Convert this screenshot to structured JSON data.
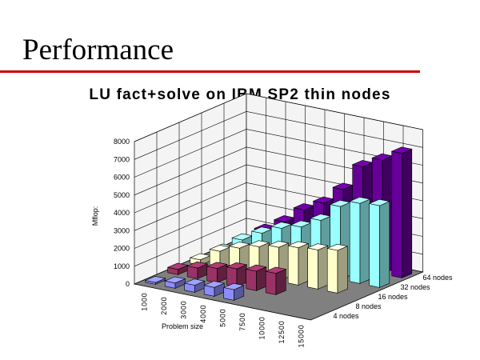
{
  "slide": {
    "title": "Performance",
    "rule_color": "#cc0000"
  },
  "chart_data": {
    "type": "bar",
    "subtype": "3d-column",
    "title": "LU fact+solve on IBM SP2 thin nodes",
    "xlabel": "Problem size",
    "ylabel": "Mflop:",
    "categories": [
      "1000",
      "2000",
      "3000",
      "4000",
      "5000",
      "7500",
      "10000",
      "12500",
      "15000"
    ],
    "ylim": [
      0,
      8000
    ],
    "yticks": [
      "0",
      "1000",
      "2000",
      "3000",
      "4000",
      "5000",
      "6000",
      "7000",
      "8000"
    ],
    "grid": true,
    "series": [
      {
        "name": "4 nodes",
        "color": "#8c8cff",
        "values": [
          100,
          300,
          400,
          500,
          600,
          null,
          null,
          null,
          null
        ]
      },
      {
        "name": "8 nodes",
        "color": "#993366",
        "values": [
          300,
          600,
          800,
          1000,
          1100,
          1200,
          null,
          null,
          null
        ]
      },
      {
        "name": "16 nodes",
        "color": "#ffffcc",
        "values": [
          300,
          1000,
          1400,
          1700,
          1900,
          2100,
          2200,
          2400,
          null
        ]
      },
      {
        "name": "32 nodes",
        "color": "#99ffff",
        "values": [
          300,
          1100,
          1700,
          2200,
          2500,
          3100,
          4100,
          4500,
          4600
        ]
      },
      {
        "name": "64 nodes",
        "color": "#660099",
        "values": [
          300,
          1100,
          1800,
          2700,
          3300,
          4300,
          5800,
          6400,
          7000
        ]
      }
    ]
  }
}
